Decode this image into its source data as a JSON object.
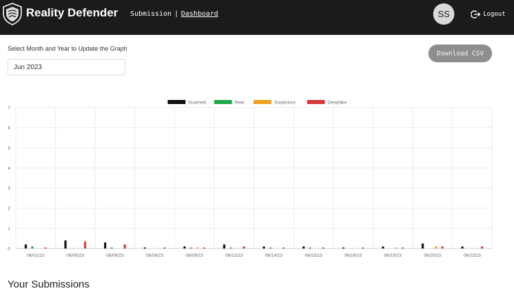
{
  "app": {
    "brand": "Reality Defender"
  },
  "nav": {
    "items": [
      {
        "label": "Submission"
      },
      {
        "label": "Dashboard",
        "active": true
      }
    ],
    "separator": "|"
  },
  "user": {
    "initials": "SS",
    "logout_label": "Logout"
  },
  "controls": {
    "select_label": "Select Month and Year to Update the Graph",
    "month_value": "Jun 2023",
    "download_label": "Download CSV"
  },
  "colors": {
    "topbar": "#1b1b1b",
    "scanned": "#111111",
    "real": "#1fa84a",
    "suspicious": "#f0a020",
    "deepfake": "#d43a3a"
  },
  "chart_data": {
    "type": "bar",
    "title": "",
    "xlabel": "",
    "ylabel": "",
    "ylim": [
      0,
      7
    ],
    "yticks": [
      0,
      1,
      2,
      3,
      4,
      5,
      6,
      7
    ],
    "grid": true,
    "legend_position": "top-center",
    "categories": [
      "06/01/23",
      "06/05/23",
      "06/06/23",
      "06/08/23",
      "06/09/23",
      "06/12/23",
      "06/14/23",
      "06/15/23",
      "06/16/23",
      "06/19/23",
      "06/20/23",
      "06/23/23"
    ],
    "series": [
      {
        "name": "Scanned",
        "color": "#111111",
        "values": [
          0.2,
          0.4,
          0.3,
          0.05,
          0.1,
          0.2,
          0.1,
          0.1,
          0.05,
          0.1,
          0.25,
          0.1
        ]
      },
      {
        "name": "Real",
        "color": "#1fa84a",
        "values": [
          0.1,
          0,
          0.05,
          0,
          0.05,
          0.05,
          0.05,
          0.05,
          0,
          0,
          0,
          0
        ]
      },
      {
        "name": "Suspicious",
        "color": "#f0a020",
        "values": [
          0,
          0,
          0,
          0,
          0.05,
          0,
          0,
          0,
          0,
          0.05,
          0.1,
          0
        ]
      },
      {
        "name": "Deepfake",
        "color": "#d43a3a",
        "values": [
          0.05,
          0.35,
          0.2,
          0.05,
          0.05,
          0.1,
          0.05,
          0.05,
          0.05,
          0.05,
          0.1,
          0.1
        ]
      }
    ]
  },
  "submissions": {
    "title": "Your Submissions"
  }
}
